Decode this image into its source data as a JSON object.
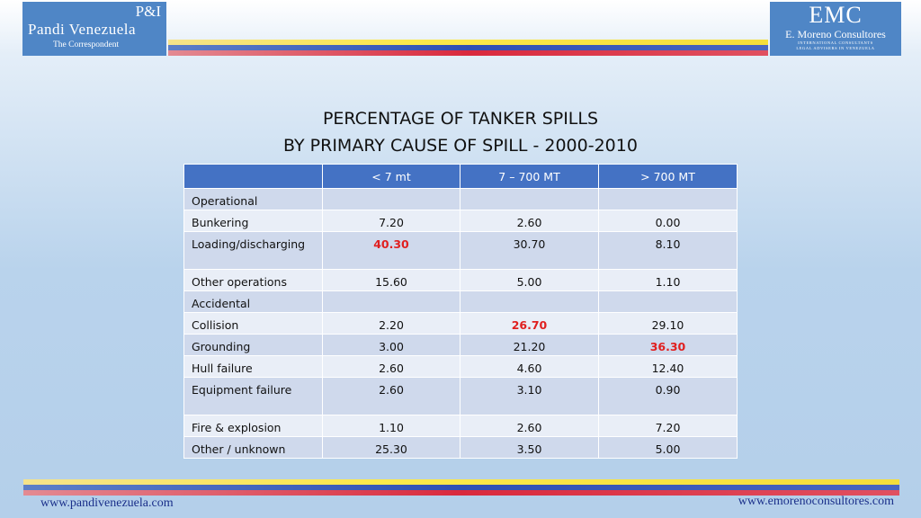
{
  "logos": {
    "left": {
      "mark": "P&I",
      "name": "Pandi Venezuela",
      "subtitle": "The Correspondent"
    },
    "right": {
      "mark": "EMC",
      "name": "E. Moreno Consultores",
      "tagline1": "INTERNATIONAL CONSULTANTS",
      "tagline2": "LEGAL ADVISERS IN VENEZUELA"
    }
  },
  "title": {
    "line1": "PERCENTAGE OF TANKER SPILLS",
    "line2": "BY PRIMARY CAUSE OF SPILL - 2000-2010"
  },
  "table": {
    "headers": [
      "",
      "< 7 mt",
      "7 – 700 MT",
      "> 700 MT"
    ],
    "rows": [
      {
        "label": "Operational",
        "values": [
          "",
          "",
          ""
        ]
      },
      {
        "label": "Bunkering",
        "values": [
          "7.20",
          "2.60",
          "0.00"
        ]
      },
      {
        "label": "Loading/discharging",
        "values": [
          "40.30",
          "30.70",
          "8.10"
        ]
      },
      {
        "label": "Other operations",
        "values": [
          "15.60",
          "5.00",
          "1.10"
        ]
      },
      {
        "label": "Accidental",
        "values": [
          "",
          "",
          ""
        ]
      },
      {
        "label": "Collision",
        "values": [
          "2.20",
          "26.70",
          "29.10"
        ]
      },
      {
        "label": "Grounding",
        "values": [
          "3.00",
          "21.20",
          "36.30"
        ]
      },
      {
        "label": "Hull failure",
        "values": [
          "2.60",
          "4.60",
          "12.40"
        ]
      },
      {
        "label": "Equipment failure",
        "values": [
          "2.60",
          "3.10",
          "0.90"
        ]
      },
      {
        "label": "Fire & explosion",
        "values": [
          "1.10",
          "2.60",
          "7.20"
        ]
      },
      {
        "label": "Other / unknown",
        "values": [
          "25.30",
          "3.50",
          "5.00"
        ]
      }
    ],
    "highlight_color": "#e02020"
  },
  "footer": {
    "left_url": "www.pandivenezuela.com",
    "right_url": "www.emorenoconsultores.com"
  }
}
